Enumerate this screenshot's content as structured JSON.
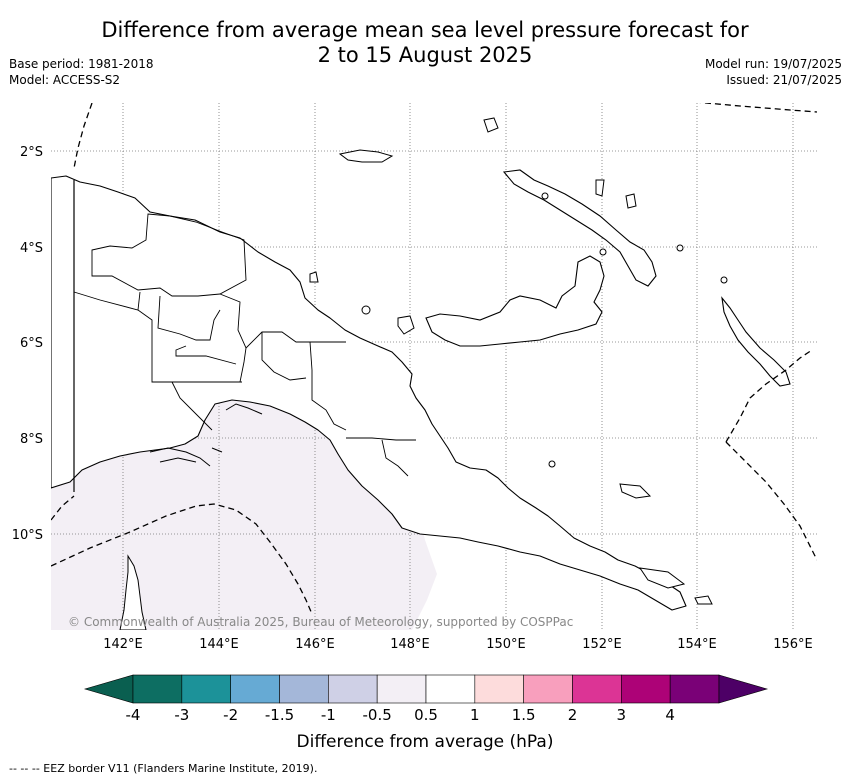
{
  "title": {
    "line1": "Difference from average mean sea level pressure forecast for",
    "line2": "2 to 15 August 2025"
  },
  "meta_left": {
    "base_period": "Base period: 1981-2018",
    "model": "Model: ACCESS-S2"
  },
  "meta_right": {
    "model_run": "Model run: 19/07/2025",
    "issued": "Issued: 21/07/2025"
  },
  "map": {
    "lat_ticks": [
      "2°S",
      "4°S",
      "6°S",
      "8°S",
      "10°S"
    ],
    "lon_ticks": [
      "142°E",
      "144°E",
      "146°E",
      "148°E",
      "150°E",
      "152°E",
      "154°E",
      "156°E"
    ],
    "copyright": "© Commonwealth of Australia 2025, Bureau of Meteorology, supported by COSPPac",
    "colors": {
      "land_outline": "#000000",
      "anomaly_fill": "#f3eff5",
      "grid": "#777777"
    }
  },
  "colorbar": {
    "labels": [
      "-4",
      "-3",
      "-2",
      "-1.5",
      "-1",
      "-0.5",
      "0.5",
      "1",
      "1.5",
      "2",
      "3",
      "4"
    ],
    "colors": [
      "#0d6e62",
      "#1c9299",
      "#66aad4",
      "#a4b7d9",
      "#cfd0e6",
      "#f3eff5",
      "#ffffff",
      "#fddcdc",
      "#f89fbd",
      "#dc3495",
      "#ad0277",
      "#7a0177"
    ],
    "under_color": "#0a5f50",
    "over_color": "#4d0066",
    "title": "Difference from average (hPa)"
  },
  "footer": "-- -- -- EEZ border V11 (Flanders Marine Institute, 2019)."
}
